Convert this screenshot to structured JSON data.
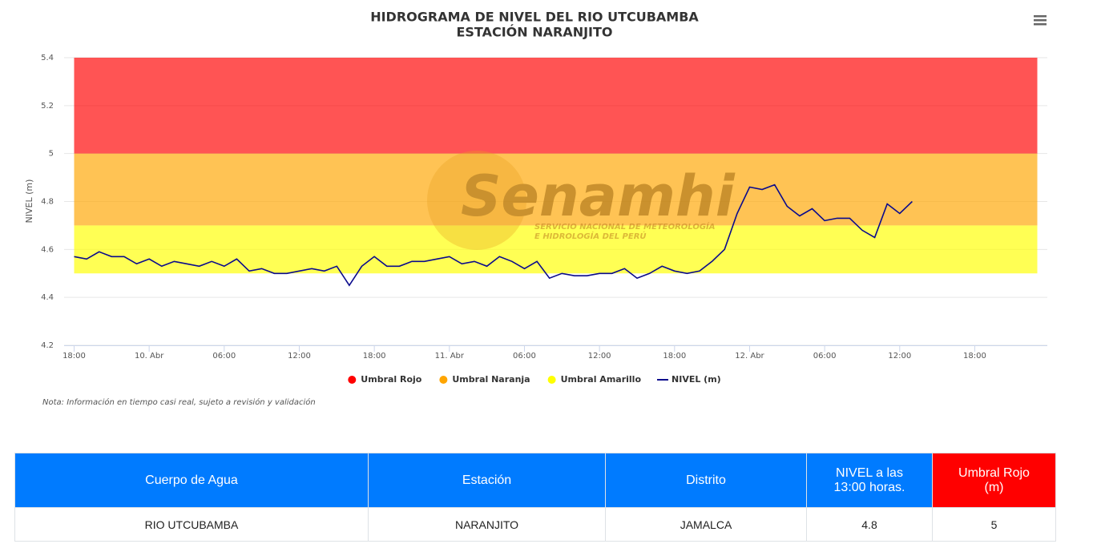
{
  "chart_data": {
    "type": "line",
    "title": "HIDROGRAMA DE NIVEL DEL RIO UTCUBAMBA",
    "subtitle": "ESTACIÓN NARANJITO",
    "y_label": "NIVEL (m)",
    "xlim": [
      -0.8,
      77.8
    ],
    "xticks": [
      {
        "value": 0,
        "label": "18:00"
      },
      {
        "value": 6,
        "label": "10. Abr"
      },
      {
        "value": 12,
        "label": "06:00"
      },
      {
        "value": 18,
        "label": "12:00"
      },
      {
        "value": 24,
        "label": "18:00"
      },
      {
        "value": 30,
        "label": "11. Abr"
      },
      {
        "value": 36,
        "label": "06:00"
      },
      {
        "value": 42,
        "label": "12:00"
      },
      {
        "value": 48,
        "label": "18:00"
      },
      {
        "value": 54,
        "label": "12. Abr"
      },
      {
        "value": 60,
        "label": "06:00"
      },
      {
        "value": 66,
        "label": "12:00"
      },
      {
        "value": 72,
        "label": "18:00"
      }
    ],
    "ylim": [
      4.2,
      5.4
    ],
    "yticks": [
      4.2,
      4.4,
      4.6,
      4.8,
      5,
      5.2,
      5.4
    ],
    "grid": true,
    "band_x": [
      0,
      77
    ],
    "plot_bands": [
      {
        "name": "Umbral Rojo",
        "color": "#ff0000",
        "from": 5,
        "to": 5.4
      },
      {
        "name": "Umbral Naranja",
        "color": "#ffa500",
        "from": 4.7,
        "to": 5
      },
      {
        "name": "Umbral Amarillo",
        "color": "#ffff00",
        "from": 4.5,
        "to": 4.7
      }
    ],
    "x": [
      0,
      1,
      2,
      3,
      4,
      5,
      6,
      7,
      8,
      9,
      10,
      11,
      12,
      13,
      14,
      15,
      16,
      17,
      18,
      19,
      20,
      21,
      22,
      23,
      24,
      25,
      26,
      27,
      28,
      29,
      30,
      31,
      32,
      33,
      34,
      35,
      36,
      37,
      38,
      39,
      40,
      41,
      42,
      43,
      44,
      45,
      46,
      47,
      48,
      49,
      50,
      51,
      52,
      53,
      54,
      55,
      56,
      57,
      58,
      59,
      60,
      61,
      62,
      63,
      64,
      65,
      66,
      67
    ],
    "series": [
      {
        "name": "NIVEL (m)",
        "color": "#0a0a8c",
        "values": [
          4.57,
          4.56,
          4.59,
          4.57,
          4.57,
          4.54,
          4.56,
          4.53,
          4.55,
          4.54,
          4.53,
          4.55,
          4.53,
          4.56,
          4.51,
          4.52,
          4.5,
          4.5,
          4.51,
          4.52,
          4.51,
          4.53,
          4.45,
          4.53,
          4.57,
          4.53,
          4.53,
          4.55,
          4.55,
          4.56,
          4.57,
          4.54,
          4.55,
          4.53,
          4.57,
          4.55,
          4.52,
          4.55,
          4.48,
          4.5,
          4.49,
          4.49,
          4.5,
          4.5,
          4.52,
          4.48,
          4.5,
          4.53,
          4.51,
          4.5,
          4.51,
          4.55,
          4.6,
          4.75,
          4.86,
          4.85,
          4.87,
          4.78,
          4.74,
          4.77,
          4.72,
          4.73,
          4.73,
          4.68,
          4.65,
          4.79,
          4.75,
          4.8
        ]
      }
    ],
    "legend": "bottom"
  },
  "watermark": {
    "name": "Senamhi",
    "line1": "SERVICIO NACIONAL DE METEOROLOGÍA",
    "line2": "E HIDROLOGÍA DEL PERÚ"
  },
  "note": "Nota: Información en tiempo casi real, sujeto a revisión y validación",
  "table": {
    "header": [
      "Cuerpo de Agua",
      "Estación",
      "Distrito",
      "NIVEL a las 13:00 horas.",
      "Umbral Rojo (m)"
    ],
    "rows": [
      [
        "RIO UTCUBAMBA",
        "NARANJITO",
        "JAMALCA",
        4.8,
        5
      ]
    ]
  }
}
